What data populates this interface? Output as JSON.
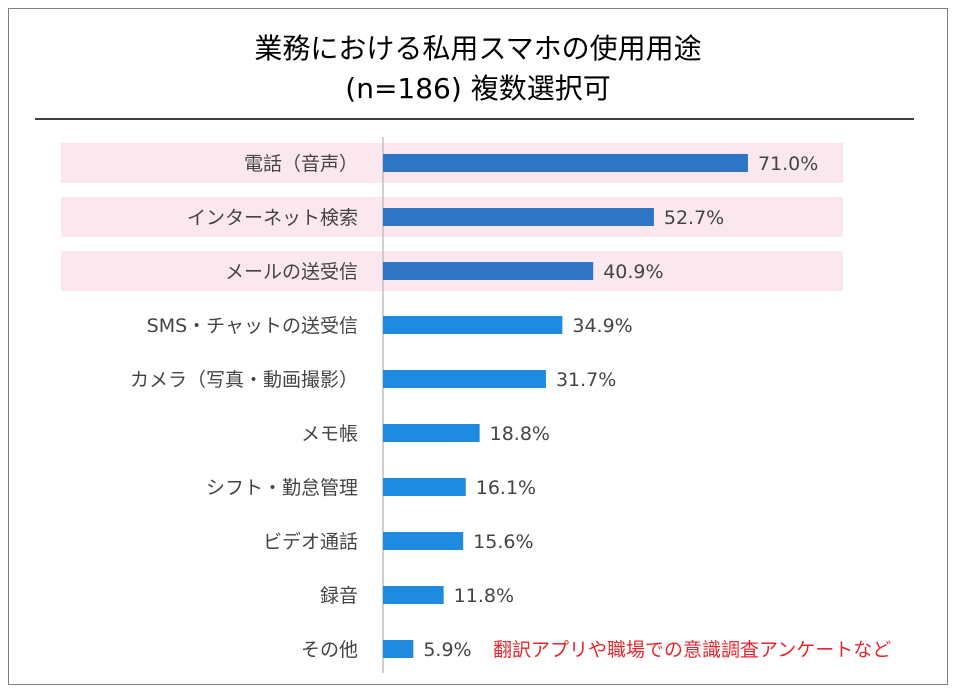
{
  "chart_data": {
    "type": "bar",
    "orientation": "horizontal",
    "title": "業務における私用スマホの使用用途",
    "subtitle": "(n=186) 複数選択可",
    "categories": [
      "電話（音声）",
      "インターネット検索",
      "メールの送受信",
      "SMS・チャットの送受信",
      "カメラ（写真・動画撮影）",
      "メモ帳",
      "シフト・勤怠管理",
      "ビデオ通話",
      "録音",
      "その他"
    ],
    "values": [
      71.0,
      52.7,
      40.9,
      34.9,
      31.7,
      18.8,
      16.1,
      15.6,
      11.8,
      5.9
    ],
    "value_labels": [
      "71.0%",
      "52.7%",
      "40.9%",
      "34.9%",
      "31.7%",
      "18.8%",
      "16.1%",
      "15.6%",
      "11.8%",
      "5.9%"
    ],
    "highlighted_indices": [
      0,
      1,
      2
    ],
    "annotation": "翻訳アプリや職場での意識調査アンケートなど",
    "annotation_index": 9,
    "xlim": [
      0,
      100
    ],
    "colors": {
      "top_bar": "#2e75c6",
      "bar": "#1e8be0",
      "highlight_band": "#fbe7ee",
      "annotation": "#e8262e",
      "label": "#444444",
      "axis": "#bfbfbf",
      "frame": "#808080",
      "rule": "#000000"
    }
  }
}
